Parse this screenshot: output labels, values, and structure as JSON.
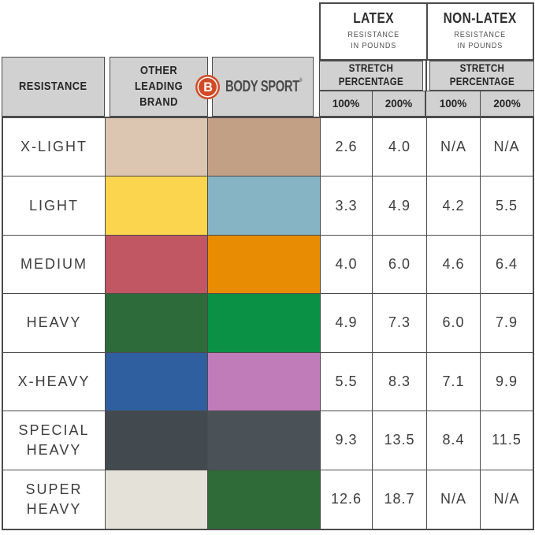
{
  "brand": {
    "logo_mark": "B",
    "logo_text": "BODY SPORT",
    "trademark": "®",
    "logo_color": "#d14b26"
  },
  "colors": {
    "header_bg": "#d1d1d1",
    "grid_line": "#4b4b4b",
    "text_dark": "#3d3d3d"
  },
  "chart_data": {
    "type": "table",
    "column_groups": [
      {
        "title": "LATEX",
        "subtitle": "RESISTANCE\nIN POUNDS"
      },
      {
        "title": "NON-LATEX",
        "subtitle": "RESISTANCE\nIN POUNDS"
      }
    ],
    "left_headers": {
      "resistance": "RESISTANCE",
      "other_brand": "OTHER\nLEADING\nBRAND"
    },
    "subheader": {
      "stretch_label": "STRETCH\nPERCENTAGE",
      "pct_labels": [
        "100%",
        "200%",
        "100%",
        "200%"
      ]
    },
    "columns": [
      "RESISTANCE",
      "OTHER LEADING BRAND",
      "BODY SPORT",
      "LATEX 100%",
      "LATEX 200%",
      "NON-LATEX 100%",
      "NON-LATEX 200%"
    ],
    "rows": [
      {
        "label": "X-LIGHT",
        "other_brand_color": "#dcc6b1",
        "body_sport_color": "#c2a086",
        "latex_100": "2.6",
        "latex_200": "4.0",
        "nonlatex_100": "N/A",
        "nonlatex_200": "N/A"
      },
      {
        "label": "LIGHT",
        "other_brand_color": "#fad54d",
        "body_sport_color": "#87b4c5",
        "latex_100": "3.3",
        "latex_200": "4.9",
        "nonlatex_100": "4.2",
        "nonlatex_200": "5.5"
      },
      {
        "label": "MEDIUM",
        "other_brand_color": "#c05763",
        "body_sport_color": "#e88c04",
        "latex_100": "4.0",
        "latex_200": "6.0",
        "nonlatex_100": "4.6",
        "nonlatex_200": "6.4"
      },
      {
        "label": "HEAVY",
        "other_brand_color": "#2e6b3b",
        "body_sport_color": "#0b9145",
        "latex_100": "4.9",
        "latex_200": "7.3",
        "nonlatex_100": "6.0",
        "nonlatex_200": "7.9"
      },
      {
        "label": "X-HEAVY",
        "other_brand_color": "#2f5f9f",
        "body_sport_color": "#c07cb8",
        "latex_100": "5.5",
        "latex_200": "8.3",
        "nonlatex_100": "7.1",
        "nonlatex_200": "9.9"
      },
      {
        "label": "SPECIAL\nHEAVY",
        "other_brand_color": "#424a4f",
        "body_sport_color": "#4b5257",
        "latex_100": "9.3",
        "latex_200": "13.5",
        "nonlatex_100": "8.4",
        "nonlatex_200": "11.5"
      },
      {
        "label": "SUPER\nHEAVY",
        "other_brand_color": "#e4e1d8",
        "body_sport_color": "#2e6b39",
        "latex_100": "12.6",
        "latex_200": "18.7",
        "nonlatex_100": "N/A",
        "nonlatex_200": "N/A"
      }
    ]
  }
}
